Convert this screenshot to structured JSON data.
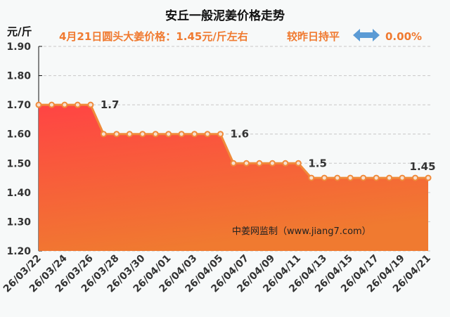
{
  "chart_data": {
    "type": "area",
    "title": "安丘一般泥姜价格走势",
    "subtitle": "4月21日圆头大姜价格：1.45元/斤左右",
    "change_text": "较昨日持平",
    "change_icon": "left-right-arrow-icon",
    "change_value": "0.00%",
    "ylabel": "元/斤",
    "ylim": [
      1.2,
      1.9
    ],
    "yticks": [
      "1.20",
      "1.30",
      "1.40",
      "1.50",
      "1.60",
      "1.70",
      "1.80",
      "1.90"
    ],
    "grid": true,
    "watermark": "中姜网监制（www.jiang7.com）",
    "x": [
      "26/03/22",
      "26/03/23",
      "26/03/24",
      "26/03/25",
      "26/03/26",
      "26/03/27",
      "26/03/28",
      "26/03/29",
      "26/03/30",
      "26/03/31",
      "26/04/01",
      "26/04/02",
      "26/04/03",
      "26/04/04",
      "26/04/05",
      "26/04/06",
      "26/04/07",
      "26/04/08",
      "26/04/09",
      "26/04/10",
      "26/04/11",
      "26/04/12",
      "26/04/13",
      "26/04/14",
      "26/04/15",
      "26/04/16",
      "26/04/17",
      "26/04/18",
      "26/04/19",
      "26/04/20",
      "26/04/21"
    ],
    "xtick_labels": [
      "26/03/22",
      "26/03/24",
      "26/03/26",
      "26/03/28",
      "26/03/30",
      "26/04/01",
      "26/04/03",
      "26/04/05",
      "26/04/07",
      "26/04/09",
      "26/04/11",
      "26/04/13",
      "26/04/15",
      "26/04/17",
      "26/04/19",
      "26/04/21"
    ],
    "values": [
      1.7,
      1.7,
      1.7,
      1.7,
      1.7,
      1.6,
      1.6,
      1.6,
      1.6,
      1.6,
      1.6,
      1.6,
      1.6,
      1.6,
      1.6,
      1.5,
      1.5,
      1.5,
      1.5,
      1.5,
      1.5,
      1.45,
      1.45,
      1.45,
      1.45,
      1.45,
      1.45,
      1.45,
      1.45,
      1.45,
      1.45
    ],
    "data_labels": [
      {
        "index": 4,
        "text": "1.7"
      },
      {
        "index": 14,
        "text": "1.6"
      },
      {
        "index": 20,
        "text": "1.5"
      },
      {
        "index": 29,
        "text": "1.45"
      }
    ],
    "colors": {
      "line": "#f08a3a",
      "fill_top": "#ff4444",
      "fill_bottom": "#f07a30",
      "text_accent": "#f07a30",
      "arrow": "#5b9bd5"
    }
  }
}
